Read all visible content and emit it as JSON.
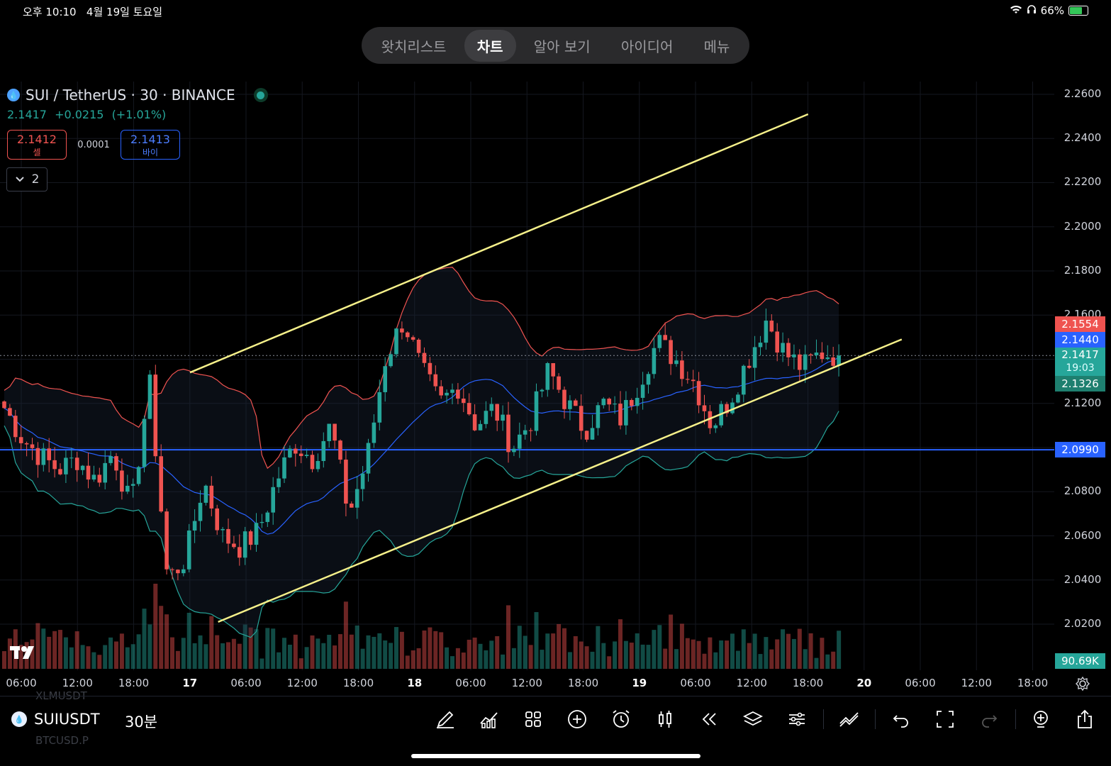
{
  "status": {
    "time": "오후 10:10",
    "date": "4월 19일 토요일",
    "battery": "66%"
  },
  "nav_tabs": [
    {
      "label": "왓치리스트",
      "active": false
    },
    {
      "label": "차트",
      "active": true
    },
    {
      "label": "알아 보기",
      "active": false
    },
    {
      "label": "아이디어",
      "active": false
    },
    {
      "label": "메뉴",
      "active": false
    }
  ],
  "legend": {
    "symbol": "SUI / TetherUS · 30 · BINANCE",
    "last": "2.1417",
    "change": "+0.0215",
    "change_pct": "(+1.01%)",
    "sell_price": "2.1412",
    "sell_label": "셀",
    "spread": "0.0001",
    "buy_price": "2.1413",
    "buy_label": "바이",
    "indicators_count": "2"
  },
  "price_axis": {
    "labels": [
      "2.2600",
      "2.2400",
      "2.2200",
      "2.2000",
      "2.1800",
      "2.1600",
      "2.1200",
      "2.0800",
      "2.0600",
      "2.0400",
      "2.0200"
    ],
    "tags": {
      "upper_band": "2.1554",
      "middle_band": "2.1440",
      "last_price": "2.1417",
      "countdown": "19:03",
      "lower_band": "2.1326",
      "horizontal_line": "2.0990",
      "volume": "90.69K"
    }
  },
  "time_axis": {
    "labels": [
      {
        "t": "06:00",
        "bold": false
      },
      {
        "t": "12:00",
        "bold": false
      },
      {
        "t": "18:00",
        "bold": false
      },
      {
        "t": "17",
        "bold": true
      },
      {
        "t": "06:00",
        "bold": false
      },
      {
        "t": "12:00",
        "bold": false
      },
      {
        "t": "18:00",
        "bold": false
      },
      {
        "t": "18",
        "bold": true
      },
      {
        "t": "06:00",
        "bold": false
      },
      {
        "t": "12:00",
        "bold": false
      },
      {
        "t": "18:00",
        "bold": false
      },
      {
        "t": "19",
        "bold": true
      },
      {
        "t": "06:00",
        "bold": false
      },
      {
        "t": "12:00",
        "bold": false
      },
      {
        "t": "18:00",
        "bold": false
      },
      {
        "t": "20",
        "bold": true
      },
      {
        "t": "06:00",
        "bold": false
      },
      {
        "t": "12:00",
        "bold": false
      },
      {
        "t": "18:00",
        "bold": false
      }
    ]
  },
  "toolbar": {
    "symbol": "SUIUSDT",
    "interval": "30분",
    "ghost_top": "XLMUSDT",
    "ghost_bottom": "BTCUSD.P"
  },
  "colors": {
    "up": "#26a69a",
    "down": "#ef5350",
    "channel": "#f5f08a",
    "hline": "#2962ff",
    "bb_upper": "#ef5350",
    "bb_mid": "#2962ff",
    "bb_lower": "#26a69a"
  },
  "chart_data": {
    "type": "candlestick",
    "xlabel": "",
    "ylabel": "",
    "ylim": [
      2.0,
      2.27
    ],
    "channel_lines": [
      {
        "x": [
          "17 00:00",
          "19 18:00"
        ],
        "y": [
          2.134,
          2.251
        ]
      },
      {
        "x": [
          "17 03:00",
          "20 04:00"
        ],
        "y": [
          2.021,
          2.149
        ]
      }
    ],
    "horizontal_line": 2.099,
    "last_price": 2.1417,
    "bollinger": {
      "upper": 2.1554,
      "middle": 2.144,
      "lower": 2.1326
    },
    "close_series_approx": [
      2.118,
      2.104,
      2.096,
      2.09,
      2.095,
      2.085,
      2.098,
      2.072,
      2.13,
      2.04,
      2.05,
      2.085,
      2.06,
      2.055,
      2.062,
      2.085,
      2.102,
      2.095,
      2.11,
      2.07,
      2.095,
      2.14,
      2.158,
      2.135,
      2.12,
      2.128,
      2.11,
      2.118,
      2.1,
      2.112,
      2.135,
      2.12,
      2.108,
      2.12,
      2.113,
      2.13,
      2.148,
      2.14,
      2.13,
      2.11,
      2.122,
      2.14,
      2.158,
      2.143,
      2.136,
      2.143,
      2.1417
    ]
  }
}
